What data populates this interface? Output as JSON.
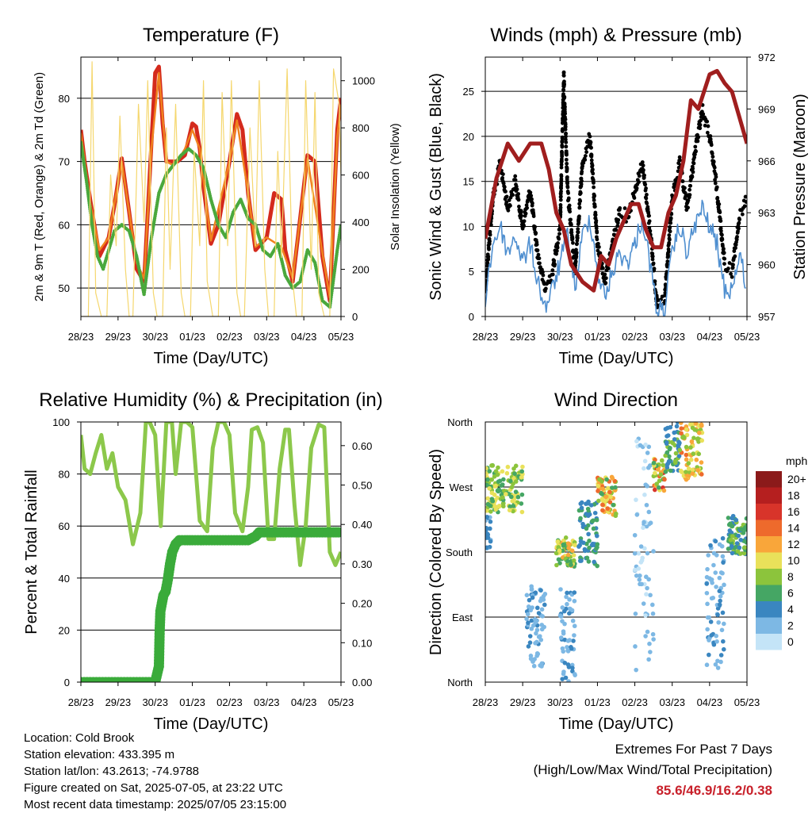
{
  "chart_data": [
    {
      "id": "temperature",
      "type": "line",
      "title": "Temperature (F)",
      "xlabel": "Time (Day/UTC)",
      "ylabel": "2m & 9m T (Red, Orange) & 2m Td (Green)",
      "y2label": "Solar Insolation (Yellow)",
      "x_ticks": [
        "28/23",
        "29/23",
        "30/23",
        "01/23",
        "02/23",
        "03/23",
        "04/23",
        "05/23"
      ],
      "ylim": [
        45.5,
        86.5
      ],
      "y_ticks": [
        50,
        60,
        70,
        80
      ],
      "y2lim": [
        0,
        1100
      ],
      "y2_ticks": [
        0,
        200,
        400,
        600,
        800,
        1000
      ],
      "grid": true,
      "series": [
        {
          "color": "#d42a1c",
          "axis": "y",
          "style": "thick-line",
          "x": [
            0,
            0.1,
            0.25,
            0.5,
            0.75,
            0.9,
            1.1,
            1.3,
            1.5,
            1.7,
            1.9,
            2.0,
            2.1,
            2.2,
            2.3,
            2.45,
            2.6,
            2.8,
            3.0,
            3.1,
            3.2,
            3.3,
            3.5,
            3.7,
            4.0,
            4.2,
            4.35,
            4.5,
            4.7,
            5.0,
            5.2,
            5.4,
            5.5,
            5.7,
            5.9,
            6.1,
            6.3,
            6.5,
            6.7,
            6.9,
            7.0
          ],
          "y": [
            75,
            70,
            64,
            55,
            58,
            63,
            70.5,
            62,
            53,
            51,
            73,
            84,
            85,
            76,
            70,
            70,
            70,
            71,
            76,
            75.5,
            72,
            66,
            57,
            60,
            70,
            77.5,
            75,
            65,
            56,
            58,
            65,
            64,
            56,
            51,
            61,
            71,
            70,
            55,
            48,
            75,
            80
          ]
        },
        {
          "color": "#f0821e",
          "axis": "y",
          "style": "line",
          "x": [
            0,
            0.25,
            0.5,
            0.75,
            1.1,
            1.5,
            1.7,
            1.9,
            2.1,
            2.3,
            2.45,
            2.6,
            2.8,
            3.0,
            3.2,
            3.5,
            4.0,
            4.2,
            4.5,
            4.7,
            5.0,
            5.4,
            5.7,
            6.1,
            6.5,
            6.7,
            6.9,
            7.0
          ],
          "y": [
            74.5,
            63.5,
            56,
            58,
            70,
            54,
            51.5,
            72,
            84,
            70,
            69.5,
            70,
            72,
            75,
            72,
            57.5,
            70,
            76.5,
            65,
            56.5,
            58,
            56.5,
            51.5,
            70.5,
            55.5,
            48.5,
            74,
            79
          ]
        },
        {
          "color": "#4aa83c",
          "axis": "y",
          "style": "dotted",
          "x": [
            0,
            0.15,
            0.3,
            0.45,
            0.6,
            0.75,
            0.9,
            1.1,
            1.3,
            1.5,
            1.7,
            1.9,
            2.1,
            2.3,
            2.5,
            2.7,
            2.9,
            3.1,
            3.3,
            3.5,
            3.7,
            3.9,
            4.1,
            4.3,
            4.5,
            4.7,
            4.9,
            5.1,
            5.3,
            5.5,
            5.7,
            5.9,
            6.1,
            6.3,
            6.5,
            6.7,
            6.9,
            7.0
          ],
          "y": [
            73,
            67,
            60,
            55,
            53,
            56,
            59,
            60,
            59,
            55,
            49,
            58,
            65,
            68,
            69.5,
            71,
            72,
            71,
            69,
            64,
            60,
            58,
            62,
            64,
            61,
            60,
            56,
            55,
            57,
            52,
            50,
            51,
            56,
            54,
            48,
            47,
            56,
            60
          ]
        },
        {
          "color": "#f5d76e",
          "axis": "y2",
          "style": "thin-line",
          "x": [
            0,
            0.2,
            0.3,
            0.4,
            0.55,
            0.7,
            0.8,
            0.95,
            1.05,
            1.2,
            1.3,
            1.4,
            1.55,
            1.7,
            1.8,
            1.95,
            2.05,
            2.2,
            2.3,
            2.4,
            2.55,
            2.7,
            2.8,
            2.95,
            3.05,
            3.2,
            3.3,
            3.4,
            3.55,
            3.7,
            3.8,
            3.95,
            4.05,
            4.2,
            4.3,
            4.4,
            4.55,
            4.7,
            4.8,
            4.95,
            5.05,
            5.2,
            5.3,
            5.4,
            5.55,
            5.7,
            5.8,
            5.95,
            6.05,
            6.2,
            6.3,
            6.4,
            6.55,
            6.7,
            6.8,
            6.95,
            7.0
          ],
          "y": [
            0,
            0,
            1080,
            100,
            0,
            0,
            600,
            300,
            850,
            200,
            0,
            0,
            900,
            400,
            1000,
            100,
            0,
            0,
            800,
            200,
            900,
            100,
            0,
            0,
            700,
            300,
            1000,
            150,
            0,
            0,
            950,
            300,
            1000,
            100,
            0,
            0,
            800,
            300,
            1000,
            200,
            0,
            0,
            700,
            250,
            1050,
            150,
            0,
            0,
            1000,
            200,
            950,
            100,
            0,
            0,
            1050,
            900,
            600
          ]
        }
      ]
    },
    {
      "id": "winds",
      "type": "line",
      "title": "Winds (mph) & Pressure (mb)",
      "xlabel": "Time (Day/UTC)",
      "ylabel": "Sonic Wind & Gust (Blue, Black)",
      "y2label": "Station Pressure (Maroon)",
      "x_ticks": [
        "28/23",
        "29/23",
        "30/23",
        "01/23",
        "02/23",
        "03/23",
        "04/23",
        "05/23"
      ],
      "ylim": [
        0,
        28.8
      ],
      "y_ticks": [
        0,
        5,
        10,
        15,
        20,
        25
      ],
      "y2lim": [
        957,
        972
      ],
      "y2_ticks": [
        957,
        960,
        963,
        966,
        969,
        972
      ],
      "grid": true,
      "series": [
        {
          "color": "#000000",
          "axis": "y",
          "style": "dotted",
          "x": [
            0,
            0.2,
            0.4,
            0.6,
            0.8,
            1.0,
            1.2,
            1.4,
            1.6,
            1.8,
            2.0,
            2.1,
            2.2,
            2.4,
            2.6,
            2.8,
            3.0,
            3.2,
            3.4,
            3.6,
            3.8,
            4.0,
            4.2,
            4.4,
            4.6,
            4.8,
            5.0,
            5.2,
            5.4,
            5.6,
            5.8,
            6.0,
            6.2,
            6.4,
            6.6,
            6.8,
            7.0
          ],
          "y": [
            3,
            13,
            17,
            12,
            15,
            10,
            14,
            7,
            3,
            5,
            10,
            26.7,
            14,
            5,
            17,
            20,
            8,
            4,
            8,
            12,
            11,
            14,
            17,
            10,
            1,
            2,
            13,
            17,
            12,
            18,
            23,
            20,
            14,
            6,
            5,
            11,
            13
          ]
        },
        {
          "color": "#4f8fd0",
          "axis": "y",
          "style": "line",
          "x": [
            0,
            0.2,
            0.4,
            0.6,
            0.8,
            1.0,
            1.2,
            1.4,
            1.6,
            1.8,
            2.0,
            2.2,
            2.4,
            2.6,
            2.8,
            3.0,
            3.2,
            3.4,
            3.6,
            3.8,
            4.0,
            4.2,
            4.4,
            4.6,
            4.8,
            5.0,
            5.2,
            5.4,
            5.6,
            5.8,
            6.0,
            6.2,
            6.4,
            6.6,
            6.8,
            7.0
          ],
          "y": [
            2,
            8,
            10,
            7,
            9,
            6,
            8,
            4,
            1,
            3,
            6,
            9,
            3,
            9,
            11,
            5,
            2,
            5,
            7,
            6,
            8,
            11,
            6,
            0.5,
            1,
            7,
            10,
            7,
            10,
            12,
            10,
            8,
            3,
            3,
            7,
            3
          ]
        },
        {
          "color": "#a01e1e",
          "axis": "y2",
          "style": "thick-line",
          "x": [
            0,
            0.3,
            0.6,
            0.9,
            1.2,
            1.5,
            1.7,
            1.9,
            2.1,
            2.3,
            2.6,
            2.9,
            3.1,
            3.3,
            3.5,
            3.7,
            3.9,
            4.1,
            4.3,
            4.5,
            4.7,
            4.9,
            5.1,
            5.3,
            5.5,
            5.7,
            6.0,
            6.2,
            6.4,
            6.6,
            6.8,
            7.0
          ],
          "y": [
            961.5,
            965,
            967,
            966,
            967,
            967,
            965.5,
            963,
            962,
            960,
            959,
            958.5,
            960.5,
            960,
            961.5,
            962.5,
            963.5,
            963.5,
            962,
            961,
            961,
            963,
            964,
            966,
            969.5,
            969,
            971,
            971.2,
            970.5,
            970,
            968.5,
            967
          ]
        }
      ]
    },
    {
      "id": "humidity",
      "type": "line",
      "title": "Relative Humidity (%) & Precipitation (in)",
      "xlabel": "Time (Day/UTC)",
      "ylabel": "Percent & Total Rainfall",
      "x_ticks": [
        "28/23",
        "29/23",
        "30/23",
        "01/23",
        "02/23",
        "03/23",
        "04/23",
        "05/23"
      ],
      "ylim": [
        0,
        100
      ],
      "y_ticks": [
        0,
        20,
        40,
        60,
        80,
        100
      ],
      "y2lim": [
        0,
        0.66
      ],
      "y2_ticks": [
        "0.00",
        "0.10",
        "0.20",
        "0.30",
        "0.40",
        "0.50",
        "0.60"
      ],
      "grid": true,
      "series": [
        {
          "color": "#8cc84b",
          "axis": "y",
          "style": "thick-line",
          "x": [
            0,
            0.1,
            0.25,
            0.4,
            0.55,
            0.7,
            0.85,
            1.0,
            1.2,
            1.4,
            1.6,
            1.75,
            1.85,
            2.0,
            2.15,
            2.3,
            2.45,
            2.55,
            2.7,
            2.85,
            3.0,
            3.2,
            3.4,
            3.55,
            3.7,
            3.85,
            4.0,
            4.15,
            4.35,
            4.5,
            4.6,
            4.75,
            4.9,
            5.05,
            5.2,
            5.35,
            5.5,
            5.6,
            5.75,
            5.9,
            6.05,
            6.2,
            6.4,
            6.55,
            6.7,
            6.85,
            7.0
          ],
          "y": [
            95,
            82,
            80,
            88,
            95,
            82,
            88,
            75,
            70,
            53,
            65,
            100,
            100,
            95,
            60,
            100,
            100,
            80,
            100,
            100,
            98,
            62,
            58,
            90,
            100,
            100,
            95,
            65,
            58,
            75,
            97,
            98,
            92,
            55,
            55,
            82,
            97,
            97,
            68,
            45,
            60,
            90,
            99,
            98,
            50,
            45,
            50
          ]
        },
        {
          "color": "#3aab3a",
          "axis": "y2",
          "style": "dots",
          "x": [
            0,
            0.5,
            1.0,
            1.5,
            2.0,
            2.1,
            2.12,
            2.14,
            2.18,
            2.22,
            2.28,
            2.34,
            2.4,
            2.46,
            2.55,
            2.65,
            2.8,
            3.0,
            3.3,
            3.6,
            3.9,
            4.2,
            4.5,
            4.7,
            4.8,
            5.0,
            5.3,
            5.6,
            5.9,
            6.2,
            6.5,
            6.8,
            7.0
          ],
          "y": [
            0,
            0,
            0,
            0,
            0,
            0.04,
            0.13,
            0.18,
            0.2,
            0.22,
            0.23,
            0.26,
            0.3,
            0.33,
            0.35,
            0.36,
            0.36,
            0.36,
            0.36,
            0.36,
            0.36,
            0.36,
            0.36,
            0.37,
            0.38,
            0.38,
            0.38,
            0.38,
            0.38,
            0.38,
            0.38,
            0.38,
            0.38
          ]
        }
      ]
    },
    {
      "id": "direction",
      "type": "scatter",
      "title": "Wind Direction",
      "xlabel": "Time (Day/UTC)",
      "ylabel": "Direction (Colored By Speed)",
      "x_ticks": [
        "28/23",
        "29/23",
        "30/23",
        "01/23",
        "02/23",
        "03/23",
        "04/23",
        "05/23"
      ],
      "y_ticks": [
        "North",
        "East",
        "South",
        "West",
        "North"
      ],
      "ylim": [
        0,
        360
      ],
      "grid": true,
      "legend": {
        "title": "mph",
        "placement": "right",
        "labels": [
          "20+",
          "18",
          "16",
          "14",
          "12",
          "10",
          "8",
          "6",
          "4",
          "2",
          "0"
        ],
        "colors": [
          "#8b1a1a",
          "#b51f1f",
          "#d8342a",
          "#ee6a2c",
          "#f9a63a",
          "#e9e15a",
          "#8cc43c",
          "#45a664",
          "#3a86c0",
          "#7db8e4",
          "#c4e4f7"
        ]
      },
      "clusters": [
        {
          "x0": 0.0,
          "x1": 1.0,
          "dir_lo": 235,
          "dir_hi": 300,
          "speed_lo": 5,
          "speed_hi": 11
        },
        {
          "x0": 0.0,
          "x1": 0.15,
          "dir_lo": 180,
          "dir_hi": 230,
          "speed_lo": 2,
          "speed_hi": 5
        },
        {
          "x0": 1.1,
          "x1": 1.6,
          "dir_lo": 20,
          "dir_hi": 135,
          "speed_lo": 1,
          "speed_hi": 4
        },
        {
          "x0": 1.9,
          "x1": 2.4,
          "dir_lo": 160,
          "dir_hi": 200,
          "speed_lo": 5,
          "speed_hi": 12
        },
        {
          "x0": 2.0,
          "x1": 2.4,
          "dir_lo": 0,
          "dir_hi": 130,
          "speed_lo": 1,
          "speed_hi": 4
        },
        {
          "x0": 2.5,
          "x1": 3.0,
          "dir_lo": 160,
          "dir_hi": 250,
          "speed_lo": 3,
          "speed_hi": 6
        },
        {
          "x0": 3.0,
          "x1": 3.5,
          "dir_lo": 230,
          "dir_hi": 285,
          "speed_lo": 6,
          "speed_hi": 14
        },
        {
          "x0": 4.0,
          "x1": 4.5,
          "dir_lo": 10,
          "dir_hi": 340,
          "speed_lo": 0,
          "speed_hi": 3
        },
        {
          "x0": 4.5,
          "x1": 4.8,
          "dir_lo": 265,
          "dir_hi": 310,
          "speed_lo": 5,
          "speed_hi": 16
        },
        {
          "x0": 4.8,
          "x1": 5.2,
          "dir_lo": 290,
          "dir_hi": 360,
          "speed_lo": 3,
          "speed_hi": 8
        },
        {
          "x0": 5.2,
          "x1": 5.8,
          "dir_lo": 280,
          "dir_hi": 360,
          "speed_lo": 7,
          "speed_hi": 14
        },
        {
          "x0": 5.9,
          "x1": 6.4,
          "dir_lo": 15,
          "dir_hi": 200,
          "speed_lo": 1,
          "speed_hi": 4
        },
        {
          "x0": 6.5,
          "x1": 7.0,
          "dir_lo": 175,
          "dir_hi": 230,
          "speed_lo": 4,
          "speed_hi": 9
        }
      ]
    }
  ],
  "info": {
    "location": "Location: Cold Brook",
    "elevation": "Station elevation: 433.395 m",
    "latlon": "Station lat/lon: 43.2613; -74.9788",
    "created": "Figure created on Sat, 2025-07-05, at 23:22 UTC",
    "recent": "Most recent data timestamp: 2025/07/05 23:15:00"
  },
  "extremes": {
    "line1": "Extremes For Past 7 Days",
    "line2": "(High/Low/Max Wind/Total Precipitation)",
    "values": "85.6/46.9/16.2/0.38"
  }
}
